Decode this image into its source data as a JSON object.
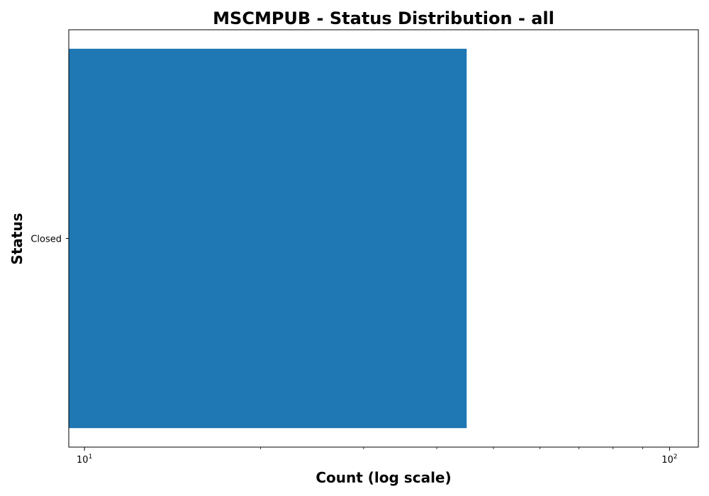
{
  "chart_data": {
    "type": "bar",
    "orientation": "horizontal",
    "title": "MSCMPUB - Status Distribution - all",
    "xlabel": "Count (log scale)",
    "ylabel": "Status",
    "x_scale": "log",
    "xlim": [
      9.4,
      112
    ],
    "x_ticks": [
      {
        "value": 10,
        "base": "10",
        "exp": "1"
      },
      {
        "value": 100,
        "base": "10",
        "exp": "2"
      }
    ],
    "categories": [
      "Closed"
    ],
    "values": [
      45
    ],
    "bar_color": "#1f77b4",
    "grid": false,
    "legend": "none"
  }
}
